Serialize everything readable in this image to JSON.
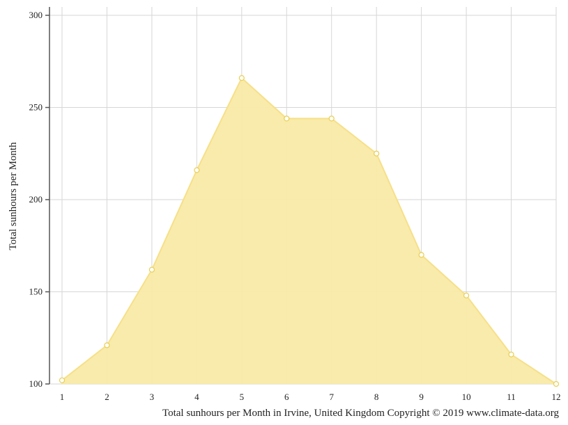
{
  "chart_data": {
    "type": "area",
    "x": [
      1,
      2,
      3,
      4,
      5,
      6,
      7,
      8,
      9,
      10,
      11,
      12
    ],
    "series": [
      {
        "values": [
          102,
          121,
          162,
          216,
          266,
          244,
          244,
          225,
          170,
          148,
          116,
          100
        ]
      }
    ],
    "ylabel": "Total sunhours per Month",
    "xlabel": "",
    "caption": "Total sunhours per Month in Irvine, United Kingdom Copyright © 2019 www.climate-data.org",
    "xlim": [
      1,
      12
    ],
    "ylim": [
      100,
      300
    ],
    "yticks": [
      100,
      150,
      200,
      250,
      300
    ],
    "xticks": [
      1,
      2,
      3,
      4,
      5,
      6,
      7,
      8,
      9,
      10,
      11,
      12
    ],
    "grid": true,
    "colors": {
      "fill": "#f9eaa6",
      "stroke": "#f6e088",
      "marker_stroke": "#e9cf4f",
      "grid": "#d6d6d6",
      "axis": "#555555"
    }
  }
}
